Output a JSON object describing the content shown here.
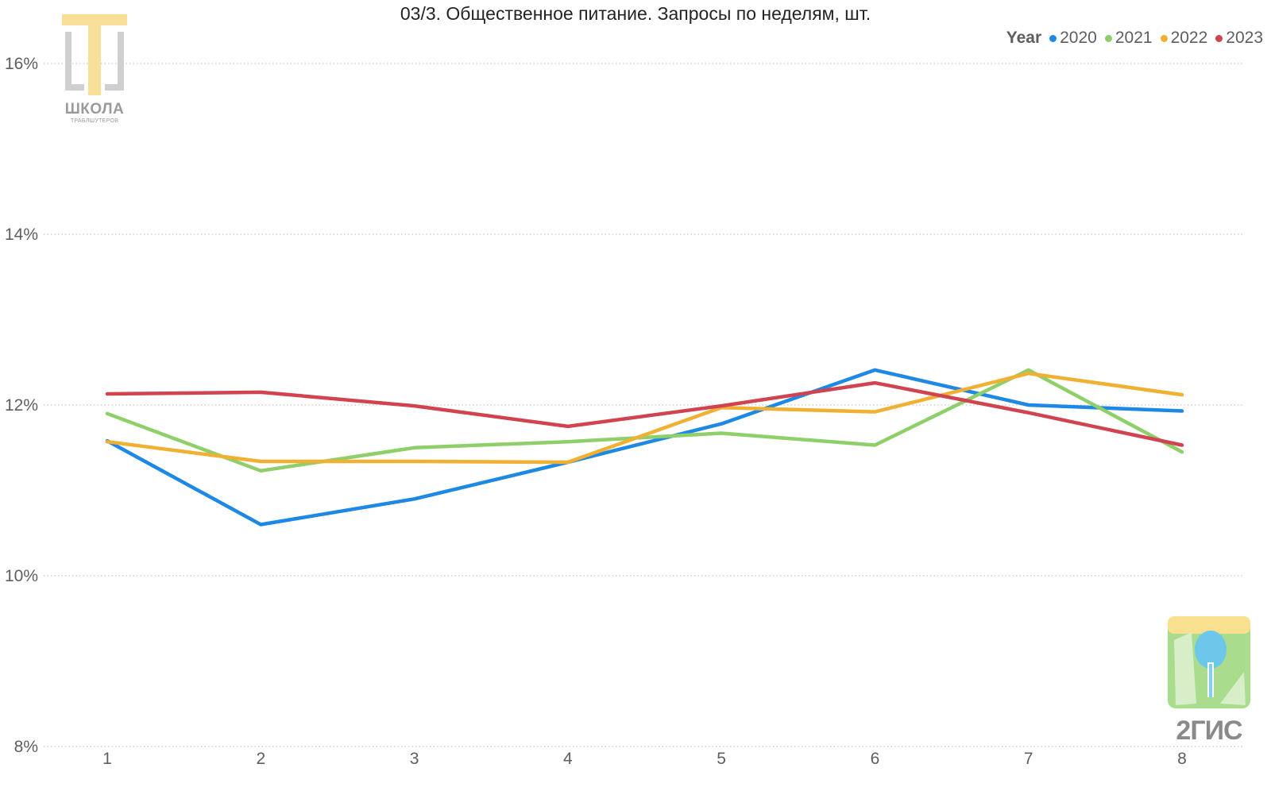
{
  "chart_data": {
    "type": "line",
    "title": "03/3. Общественное питание. Запросы по неделям, шт.",
    "legend_title": "Year",
    "legend_position": "top-right",
    "grid": true,
    "xlabel": "",
    "ylabel": "",
    "x": [
      1,
      2,
      3,
      4,
      5,
      6,
      7,
      8
    ],
    "x_tick_labels": [
      "1",
      "2",
      "3",
      "4",
      "5",
      "6",
      "7",
      "8"
    ],
    "ylim": [
      8,
      16
    ],
    "y_ticks": [
      8,
      10,
      12,
      14,
      16
    ],
    "y_tick_labels": [
      "8%",
      "10%",
      "12%",
      "14%",
      "16%"
    ],
    "series": [
      {
        "name": "2020",
        "color": "#1e88e5",
        "values": [
          11.58,
          10.6,
          10.9,
          11.33,
          11.78,
          12.41,
          12.0,
          11.93
        ]
      },
      {
        "name": "2021",
        "color": "#8fcf6a",
        "values": [
          11.9,
          11.23,
          11.5,
          11.57,
          11.67,
          11.53,
          12.41,
          11.45
        ]
      },
      {
        "name": "2022",
        "color": "#f0b032",
        "values": [
          11.57,
          11.34,
          11.34,
          11.33,
          11.97,
          11.92,
          12.37,
          12.12
        ]
      },
      {
        "name": "2023",
        "color": "#d0434f",
        "values": [
          12.13,
          12.15,
          11.99,
          11.75,
          11.99,
          12.26,
          11.91,
          11.53
        ]
      }
    ]
  },
  "logos": {
    "school": {
      "name": "ШКОЛА",
      "subtitle": "ТРАБЛШУТЕРОВ"
    },
    "gis": {
      "name": "2ГИС"
    }
  }
}
